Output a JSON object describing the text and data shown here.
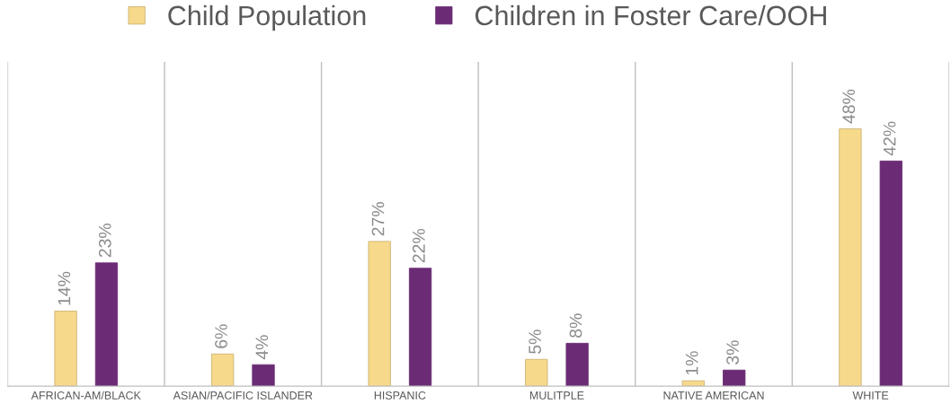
{
  "chart_data": {
    "type": "bar",
    "categories": [
      "AFRICAN-AM/BLACK",
      "ASIAN/PACIFIC ISLANDER",
      "HISPANIC",
      "MULITPLE",
      "NATIVE AMERICAN",
      "WHITE"
    ],
    "series": [
      {
        "name": "Child Population",
        "color": "#f7d98b",
        "values": [
          14,
          6,
          27,
          5,
          1,
          48
        ],
        "value_labels": [
          "14%",
          "6%",
          "27%",
          "5%",
          "1%",
          "48%"
        ]
      },
      {
        "name": "Children in Foster Care/OOH",
        "color": "#6b2c75",
        "values": [
          23,
          4,
          22,
          8,
          3,
          42
        ],
        "value_labels": [
          "23%",
          "4%",
          "22%",
          "8%",
          "3%",
          "42%"
        ]
      }
    ],
    "grid": "x",
    "legend": "top"
  }
}
